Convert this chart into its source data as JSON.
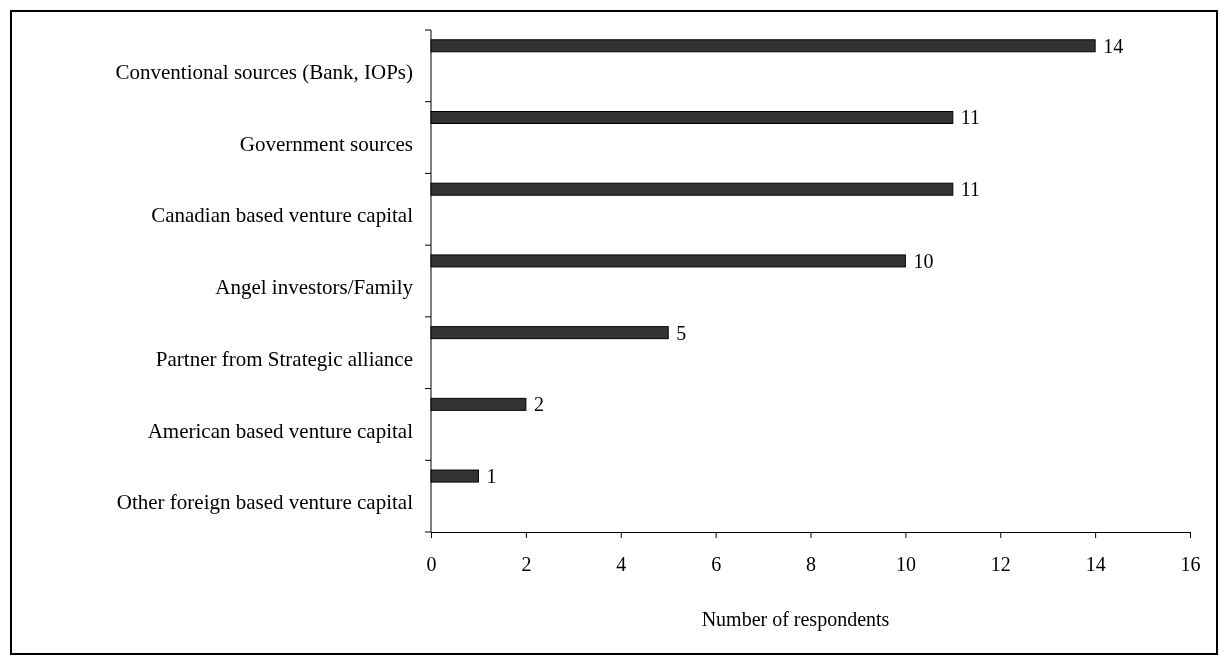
{
  "chart_data": {
    "type": "bar",
    "orientation": "horizontal",
    "xlabel": "Number of respondents",
    "categories": [
      "Conventional sources (Bank, IOPs)",
      "Government sources",
      "Canadian based venture capital",
      "Angel investors/Family",
      "Partner from Strategic alliance",
      "American based venture capital",
      "Other foreign based venture capital"
    ],
    "values": [
      14,
      11,
      11,
      10,
      5,
      2,
      1
    ],
    "color": "#333333",
    "xlim": [
      0,
      16
    ],
    "xticks": [
      0,
      2,
      4,
      6,
      8,
      10,
      12,
      14,
      16
    ],
    "grid": false,
    "data_labels": true
  }
}
